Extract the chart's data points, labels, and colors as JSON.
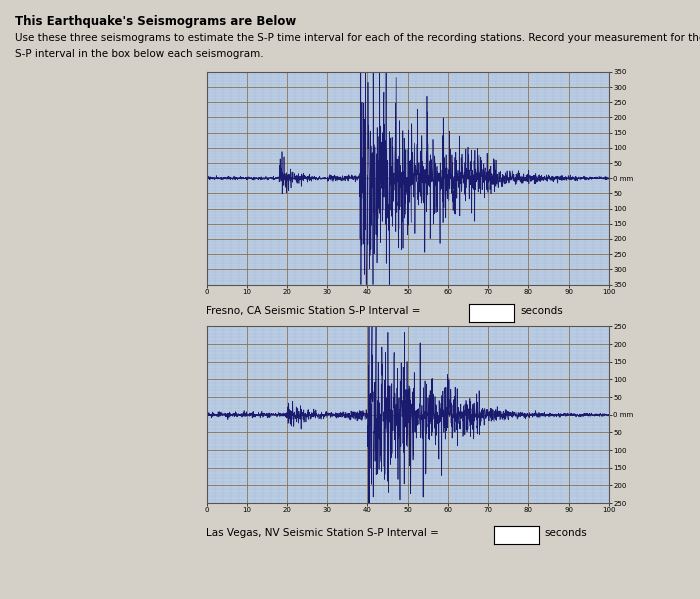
{
  "title_bold": "This Earthquake's Seismograms are Below",
  "description_line1": "Use these three seismograms to estimate the S-P time interval for each of the recording stations. Record your measurement for the",
  "description_line2": "S-P interval in the box below each seismogram.",
  "page_bg": "#d4d0c8",
  "chart1_label": "Fresno, CA Seismic Station S-P Interval =",
  "chart2_label": "Las Vegas, NV Seismic Station S-P Interval =",
  "chart1_ylim": [
    -350,
    350
  ],
  "chart2_ylim": [
    -250,
    250
  ],
  "xlim": [
    0,
    100
  ],
  "xticks": [
    0,
    10,
    20,
    30,
    40,
    50,
    60,
    70,
    80,
    90,
    100
  ],
  "chart1_yticks": [
    350,
    300,
    250,
    200,
    150,
    100,
    50,
    0,
    -50,
    -100,
    -150,
    -200,
    -250,
    -300,
    -350
  ],
  "chart2_yticks": [
    250,
    200,
    150,
    100,
    50,
    0,
    -50,
    -100,
    -150,
    -200,
    -250
  ],
  "grid_color_major": "#8B7355",
  "grid_color_minor": "#a8b8d0",
  "seismo_color": "#1a1a6e",
  "plot_bg": "#b8cce4",
  "title_fontsize": 8.5,
  "desc_fontsize": 7.5,
  "label_fontsize": 7.5,
  "tick_fontsize": 5
}
